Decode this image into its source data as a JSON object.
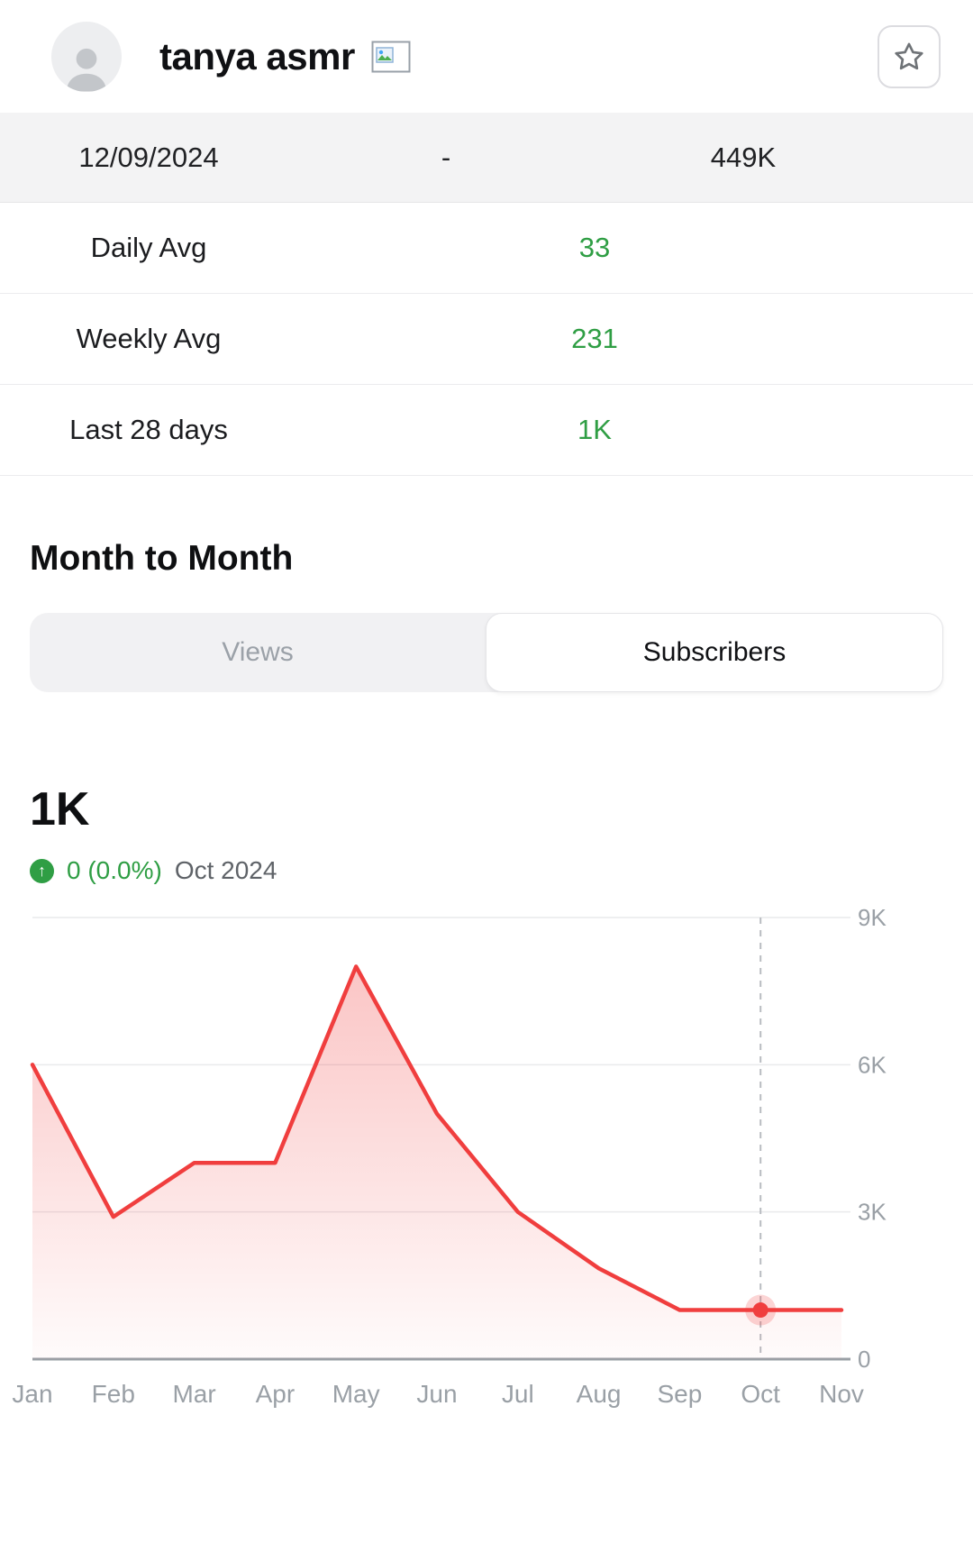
{
  "header": {
    "channel_name": "tanya asmr"
  },
  "stats_table": {
    "header": {
      "date": "12/09/2024",
      "separator": "-",
      "total_subscribers": "449K"
    },
    "rows": [
      {
        "label": "Daily Avg",
        "value": "33"
      },
      {
        "label": "Weekly Avg",
        "value": "231"
      },
      {
        "label": "Last 28 days",
        "value": "1K"
      }
    ]
  },
  "month_to_month": {
    "heading": "Month to Month",
    "tabs": [
      {
        "label": "Views",
        "active": false
      },
      {
        "label": "Subscribers",
        "active": true
      }
    ],
    "current_value": "1K",
    "change": "0 (0.0%)",
    "period": "Oct 2024"
  },
  "chart_data": {
    "type": "area",
    "title": "Month to Month Subscribers",
    "x": [
      "Jan",
      "Feb",
      "Mar",
      "Apr",
      "May",
      "Jun",
      "Jul",
      "Aug",
      "Sep",
      "Oct",
      "Nov"
    ],
    "values": [
      6000,
      2900,
      4000,
      4000,
      8000,
      5000,
      3000,
      1850,
      1000,
      1000,
      1000
    ],
    "ylim": [
      0,
      9000
    ],
    "yticks": [
      0,
      3000,
      6000,
      9000
    ],
    "ytick_labels": [
      "0",
      "3K",
      "6K",
      "9K"
    ],
    "y_axis_position": "right",
    "grid": true,
    "legend": "none",
    "highlight_index": 9,
    "highlight_label": "Oct 2024",
    "line_color": "#f03e3e"
  },
  "colors": {
    "positive_green": "#2f9e44",
    "chart_red": "#f03e3e",
    "muted_text": "#9aa0a6"
  }
}
